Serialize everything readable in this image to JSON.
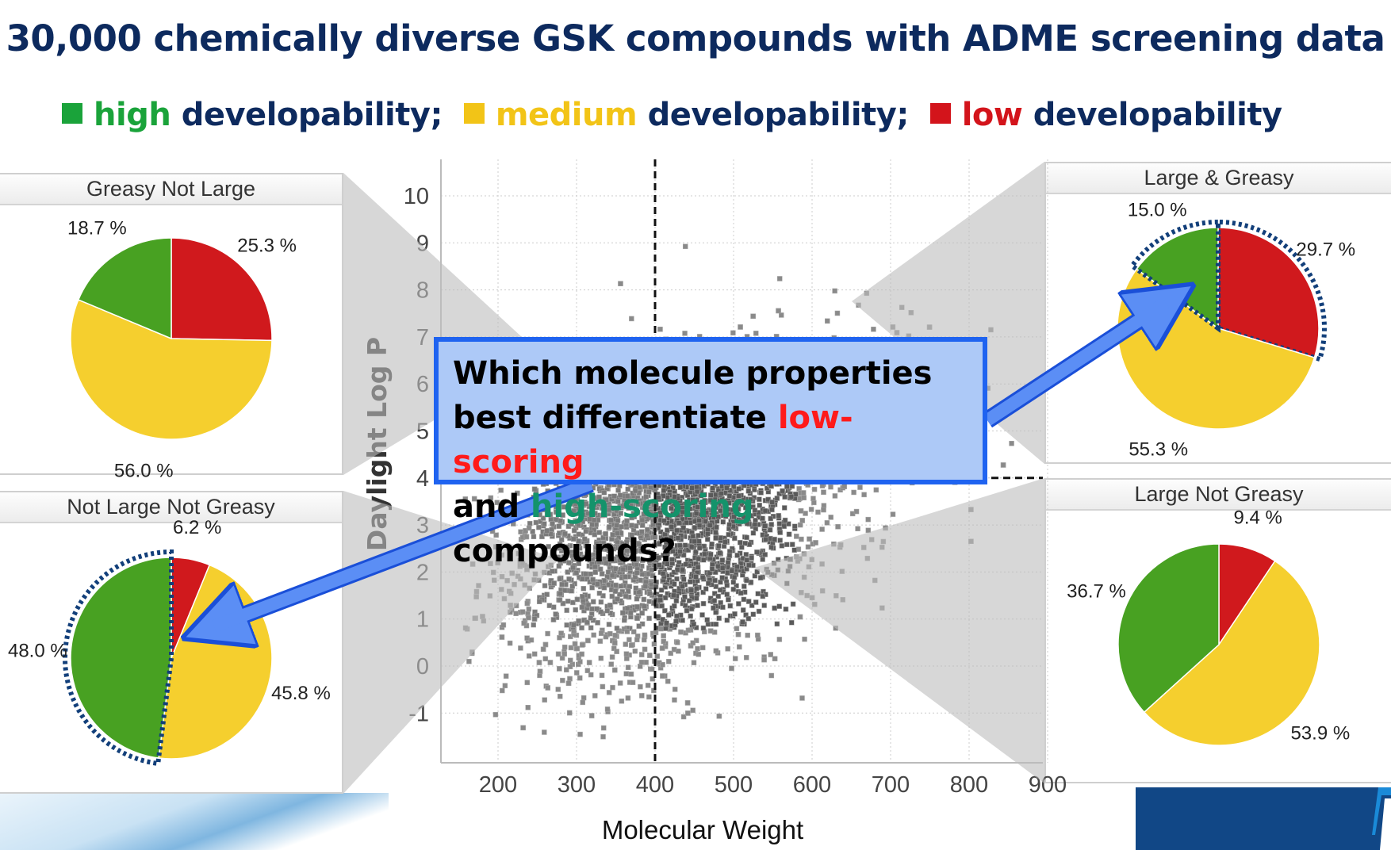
{
  "title": "30,000 chemically diverse GSK compounds with ADME screening data",
  "legend": [
    {
      "word": "high",
      "suffix": " developability;",
      "color": "#1aa33a"
    },
    {
      "word": "medium",
      "suffix": " developability;",
      "color": "#f2c417"
    },
    {
      "word": "low",
      "suffix": " developability",
      "color": "#d3141b"
    }
  ],
  "question": {
    "line1": "Which molecule properties",
    "line2_prefix": "best differentiate ",
    "line2_red": "low-scoring",
    "line3_prefix": "and ",
    "line3_green": "high-scoring",
    "line3_suffix": " compounds?",
    "red_color": "#ff1a1a",
    "green_color": "#14936b"
  },
  "colors": {
    "low": "#d0191d",
    "medium": "#f5cf2e",
    "high": "#48a122",
    "navy": "#0d2a5e"
  },
  "chart_data": [
    {
      "type": "scatter",
      "title": "",
      "xlabel": "Molecular Weight",
      "ylabel": "Daylight Log P",
      "xlim": [
        130,
        900
      ],
      "ylim": [
        -2,
        10.8
      ],
      "xticks": [
        "200",
        "300",
        "400",
        "500",
        "600",
        "700",
        "800",
        "900"
      ],
      "yticks": [
        "-1",
        "0",
        "1",
        "2",
        "3",
        "4",
        "5",
        "6",
        "7",
        "8",
        "9",
        "10"
      ],
      "grid": true,
      "thresholds": {
        "molecular_weight": 400,
        "log_p": 4
      },
      "n_compounds": 30000,
      "distribution": {
        "mw_mean": 410,
        "mw_sd": 95,
        "logp_mean": 3.0,
        "logp_sd": 1.5,
        "logp_slope_per_100_mw": 0.55
      }
    },
    {
      "type": "pie",
      "title": "Greasy Not Large",
      "labels": [
        "low",
        "medium",
        "high"
      ],
      "values": [
        25.3,
        56.0,
        18.7
      ],
      "value_labels": [
        "25.3 %",
        "56.0 %",
        "18.7 %"
      ]
    },
    {
      "type": "pie",
      "title": "Not Large Not Greasy",
      "labels": [
        "low",
        "medium",
        "high"
      ],
      "values": [
        6.2,
        45.8,
        48.0
      ],
      "value_labels": [
        "6.2 %",
        "45.8 %",
        "48.0 %"
      ]
    },
    {
      "type": "pie",
      "title": "Large & Greasy",
      "labels": [
        "low",
        "medium",
        "high"
      ],
      "values": [
        29.7,
        55.3,
        15.0
      ],
      "value_labels": [
        "29.7 %",
        "55.3 %",
        "15.0 %"
      ]
    },
    {
      "type": "pie",
      "title": "Large Not Greasy",
      "labels": [
        "low",
        "medium",
        "high"
      ],
      "values": [
        9.4,
        53.9,
        36.7
      ],
      "value_labels": [
        "9.4 %",
        "53.9 %",
        "36.7 %"
      ]
    }
  ]
}
